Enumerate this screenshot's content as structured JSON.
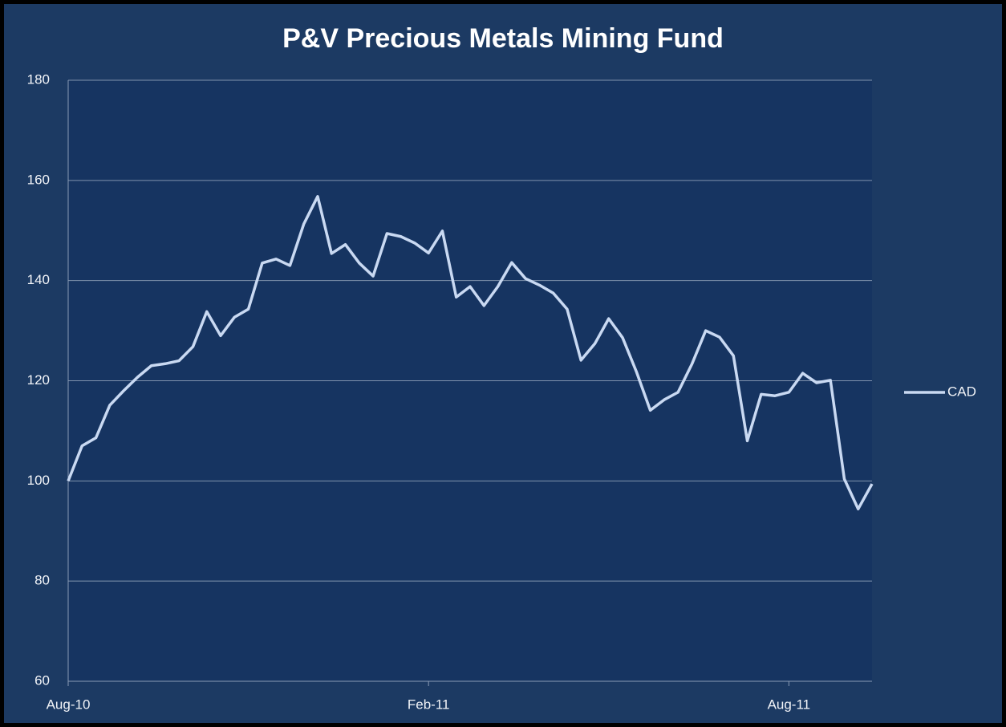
{
  "chart_data": {
    "type": "line",
    "title": "P&V Precious Metals Mining Fund",
    "categories": [
      "Aug-10",
      null,
      null,
      null,
      null,
      null,
      null,
      null,
      null,
      null,
      null,
      null,
      null,
      null,
      null,
      null,
      null,
      null,
      null,
      null,
      null,
      null,
      null,
      null,
      null,
      null,
      "Feb-11",
      null,
      null,
      null,
      null,
      null,
      null,
      null,
      null,
      null,
      null,
      null,
      null,
      null,
      null,
      null,
      null,
      null,
      null,
      null,
      null,
      null,
      null,
      null,
      null,
      null,
      "Aug-11",
      null,
      null,
      null,
      null,
      null,
      null
    ],
    "series": [
      {
        "name": "CAD",
        "color": "#c9d9f2",
        "values": [
          100,
          107,
          108.6,
          115.1,
          118,
          120.7,
          123,
          123.4,
          124,
          126.8,
          133.8,
          129,
          132.7,
          134.3,
          143.5,
          144.3,
          143,
          151.3,
          156.8,
          145.4,
          147.2,
          143.5,
          140.9,
          149.4,
          148.8,
          147.5,
          145.5,
          149.9,
          136.7,
          138.8,
          135,
          138.8,
          143.6,
          140.4,
          139.1,
          137.5,
          134.3,
          124.1,
          127.4,
          132.4,
          128.6,
          121.8,
          114.1,
          116.2,
          117.7,
          123.3,
          130,
          128.7,
          125,
          108,
          117.3,
          117,
          117.7,
          121.5,
          119.6,
          120.1,
          100.4,
          94.4,
          99.4
        ]
      }
    ],
    "ylim": [
      60,
      180
    ],
    "yticks": [
      60,
      80,
      100,
      120,
      140,
      160,
      180
    ],
    "grid": true,
    "legend": "right"
  }
}
